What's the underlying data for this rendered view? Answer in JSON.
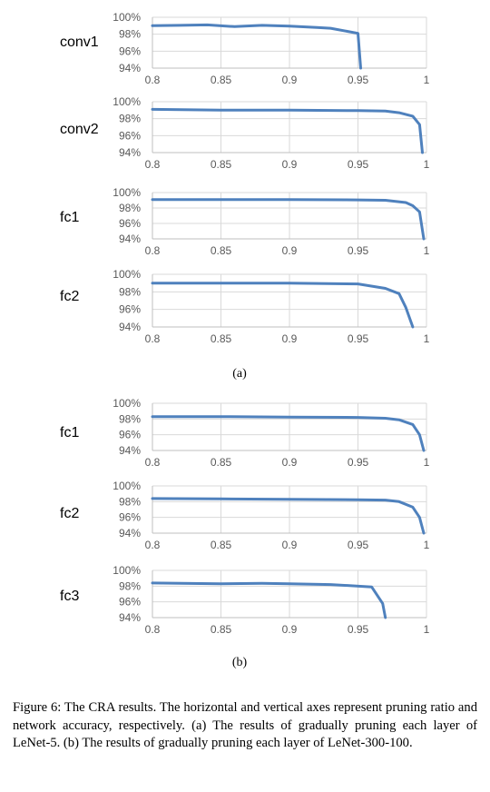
{
  "colors": {
    "series": "#4f81bd"
  },
  "axes": {
    "x_ticks": [
      "0.8",
      "0.85",
      "0.9",
      "0.95",
      "1"
    ],
    "y_ticks": [
      "100%",
      "98%",
      "96%",
      "94%"
    ]
  },
  "subcaptions": [
    "(a)",
    "(b)"
  ],
  "caption": "Figure 6: The CRA results. The horizontal and vertical axes represent pruning ratio and network accuracy, respectively. (a) The results of gradually pruning each layer of LeNet-5. (b) The results of gradually pruning each layer of LeNet-300-100.",
  "chart_data": [
    {
      "type": "line",
      "label": "conv1",
      "group": "(a)",
      "xlim": [
        0.8,
        1
      ],
      "ylim": [
        94,
        100
      ],
      "series": [
        {
          "x": [
            0.8,
            0.82,
            0.84,
            0.86,
            0.88,
            0.9,
            0.92,
            0.93,
            0.95,
            0.952
          ],
          "y": [
            99.0,
            99.05,
            99.1,
            98.9,
            99.05,
            98.95,
            98.8,
            98.7,
            98.1,
            94.0
          ]
        }
      ]
    },
    {
      "type": "line",
      "label": "conv2",
      "group": "(a)",
      "xlim": [
        0.8,
        1
      ],
      "ylim": [
        94,
        100
      ],
      "series": [
        {
          "x": [
            0.8,
            0.85,
            0.9,
            0.95,
            0.97,
            0.98,
            0.99,
            0.995,
            0.997
          ],
          "y": [
            99.1,
            99.0,
            99.0,
            98.95,
            98.9,
            98.7,
            98.3,
            97.3,
            94.0
          ]
        }
      ]
    },
    {
      "type": "line",
      "label": "fc1",
      "group": "(a)",
      "xlim": [
        0.8,
        1
      ],
      "ylim": [
        94,
        100
      ],
      "series": [
        {
          "x": [
            0.8,
            0.85,
            0.9,
            0.95,
            0.97,
            0.985,
            0.99,
            0.995,
            0.998
          ],
          "y": [
            99.1,
            99.1,
            99.1,
            99.05,
            99.0,
            98.7,
            98.3,
            97.5,
            94.0
          ]
        }
      ]
    },
    {
      "type": "line",
      "label": "fc2",
      "group": "(a)",
      "xlim": [
        0.8,
        1
      ],
      "ylim": [
        94,
        100
      ],
      "series": [
        {
          "x": [
            0.8,
            0.85,
            0.9,
            0.95,
            0.97,
            0.98,
            0.985,
            0.99
          ],
          "y": [
            99.0,
            99.0,
            99.0,
            98.9,
            98.4,
            97.8,
            96.2,
            94.0
          ]
        }
      ]
    },
    {
      "type": "line",
      "label": "fc1",
      "group": "(b)",
      "xlim": [
        0.8,
        1
      ],
      "ylim": [
        94,
        100
      ],
      "series": [
        {
          "x": [
            0.8,
            0.85,
            0.9,
            0.95,
            0.97,
            0.98,
            0.99,
            0.995,
            0.998
          ],
          "y": [
            98.3,
            98.3,
            98.25,
            98.2,
            98.1,
            97.9,
            97.3,
            96.0,
            94.0
          ]
        }
      ]
    },
    {
      "type": "line",
      "label": "fc2",
      "group": "(b)",
      "xlim": [
        0.8,
        1
      ],
      "ylim": [
        94,
        100
      ],
      "series": [
        {
          "x": [
            0.8,
            0.85,
            0.9,
            0.95,
            0.97,
            0.98,
            0.99,
            0.995,
            0.998
          ],
          "y": [
            98.4,
            98.35,
            98.3,
            98.25,
            98.2,
            98.0,
            97.3,
            96.0,
            94.0
          ]
        }
      ]
    },
    {
      "type": "line",
      "label": "fc3",
      "group": "(b)",
      "xlim": [
        0.8,
        1
      ],
      "ylim": [
        94,
        100
      ],
      "series": [
        {
          "x": [
            0.8,
            0.85,
            0.88,
            0.9,
            0.93,
            0.96,
            0.968,
            0.97
          ],
          "y": [
            98.4,
            98.3,
            98.35,
            98.3,
            98.2,
            97.9,
            95.8,
            94.0
          ]
        }
      ]
    }
  ]
}
